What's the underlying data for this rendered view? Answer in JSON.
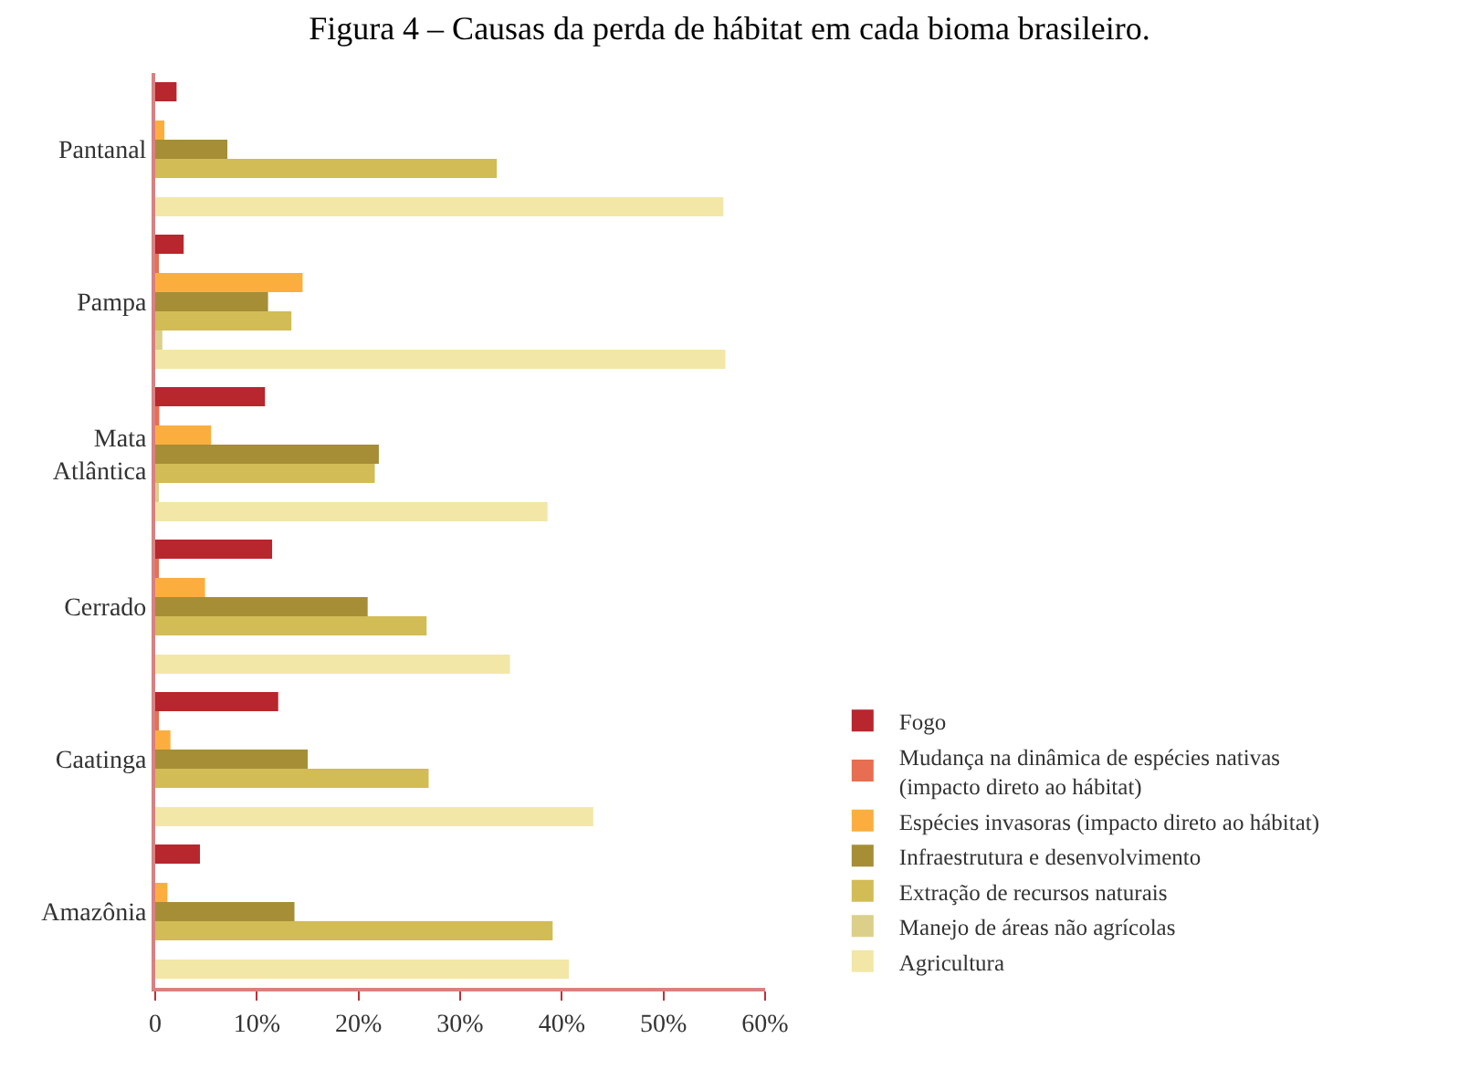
{
  "chart_data": {
    "type": "bar",
    "orientation": "horizontal",
    "title": "Figura 4 – Causas da perda de hábitat em cada bioma brasileiro.",
    "categories": [
      "Pantanal",
      "Pampa",
      "Mata Atlântica",
      "Cerrado",
      "Caatinga",
      "Amazônia"
    ],
    "series": [
      {
        "name": "Fogo",
        "color": "#b8262e",
        "values": [
          2.1,
          2.8,
          10.8,
          11.5,
          12.1,
          4.4
        ]
      },
      {
        "name": "Mudança na dinâmica de espécies nativas (impacto direto ao hábitat)",
        "color": "#e86e52",
        "values": [
          0,
          0.2,
          0.4,
          0.2,
          0.2,
          0
        ]
      },
      {
        "name": "Espécies invasoras (impacto direto ao hábitat)",
        "color": "#fbae3e",
        "values": [
          0.9,
          14.5,
          5.5,
          4.9,
          1.5,
          1.2
        ]
      },
      {
        "name": "Infraestrutura e desenvolvimento",
        "color": "#a58e36",
        "values": [
          7.1,
          11.1,
          22.0,
          20.9,
          15.0,
          13.7
        ]
      },
      {
        "name": "Extração de recursos naturais",
        "color": "#d1bc56",
        "values": [
          33.6,
          13.4,
          21.6,
          26.7,
          26.9,
          39.1
        ]
      },
      {
        "name": "Manejo de áreas não agrícolas",
        "color": "#dccf8a",
        "values": [
          0,
          0.7,
          0.2,
          0,
          0,
          0
        ]
      },
      {
        "name": "Agricultura",
        "color": "#f3e7a8",
        "values": [
          55.9,
          56.1,
          38.6,
          34.9,
          43.1,
          40.7
        ]
      }
    ],
    "xlim": [
      0,
      60
    ],
    "xticks": [
      {
        "value": 0,
        "label": "0"
      },
      {
        "value": 10,
        "label": "10%"
      },
      {
        "value": 20,
        "label": "20%"
      },
      {
        "value": 30,
        "label": "30%"
      },
      {
        "value": 40,
        "label": "40%"
      },
      {
        "value": 50,
        "label": "50%"
      },
      {
        "value": 60,
        "label": "60%"
      }
    ],
    "grid": false,
    "legend": "right"
  }
}
